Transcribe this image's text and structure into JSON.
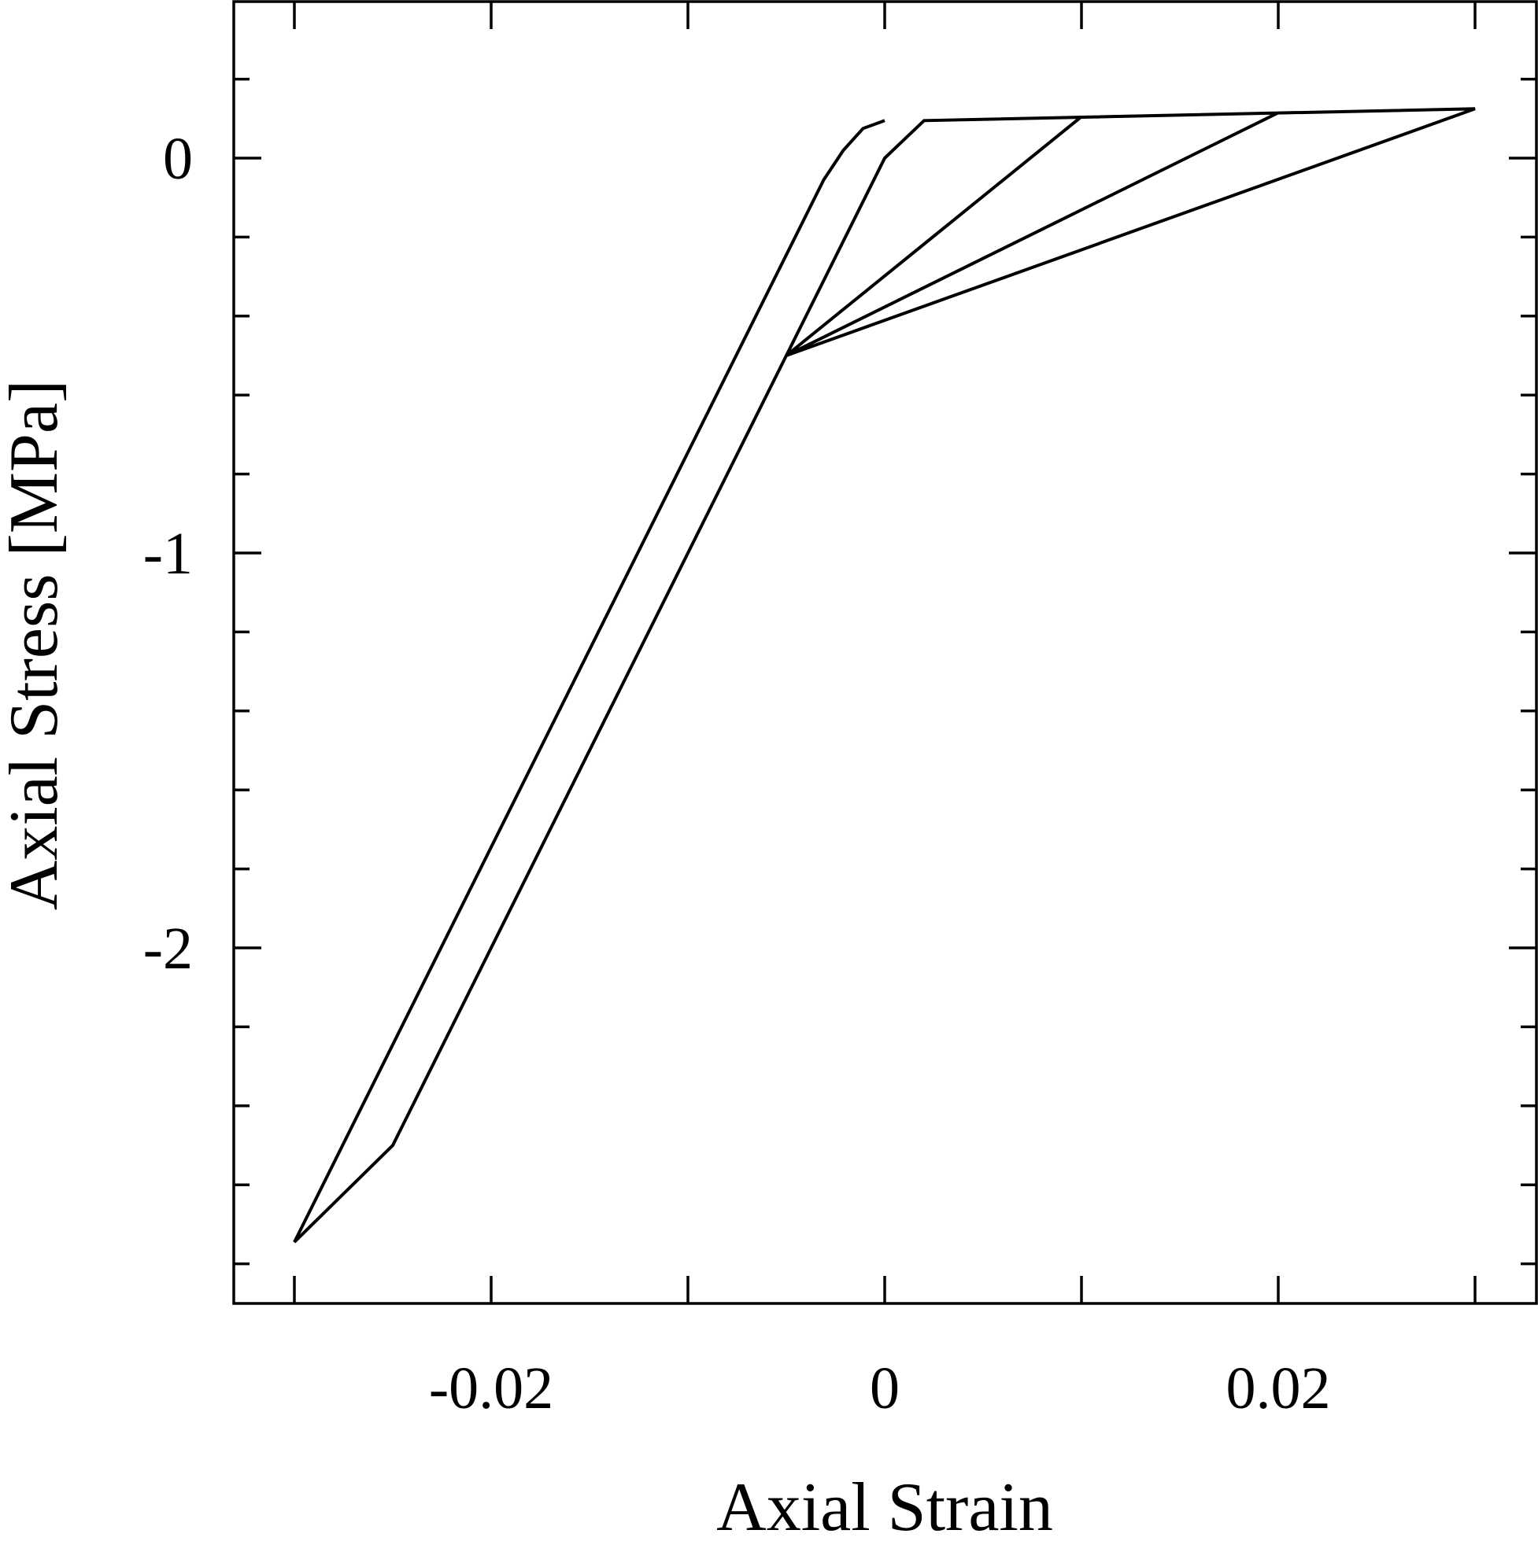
{
  "chart_data": {
    "type": "line",
    "title": "",
    "xlabel": "Axial Strain",
    "ylabel": "Axial Stress [MPa]",
    "xlim": [
      -0.033,
      0.033
    ],
    "ylim": [
      -2.9,
      0.4
    ],
    "x_ticks": [
      -0.02,
      0,
      0.02
    ],
    "x_tick_labels": [
      "-0.02",
      "0",
      "0.02"
    ],
    "x_minor_ticks": [
      -0.03,
      -0.02,
      -0.01,
      0,
      0.01,
      0.02,
      0.03
    ],
    "y_ticks": [
      0,
      -1,
      -2
    ],
    "y_tick_labels": [
      "0",
      "-1",
      "-2"
    ],
    "y_minor_ticks": [
      0.2,
      0,
      -0.2,
      -0.4,
      -0.6,
      -0.8,
      -1.0,
      -1.2,
      -1.4,
      -1.6,
      -1.8,
      -2.0,
      -2.2,
      -2.4,
      -2.6,
      -2.8
    ],
    "grid": false,
    "legend": "none",
    "series": [
      {
        "x": [
          0,
          -0.0011,
          -0.0021,
          -0.0031,
          -0.03,
          -0.025,
          -0.005,
          0,
          0.002,
          0.03,
          -0.005,
          0.01,
          -0.005,
          0.02,
          -0.005
        ],
        "y": [
          0.095,
          0.075,
          0.02,
          -0.055,
          -2.745,
          -2.5,
          -0.5,
          0,
          0.095,
          0.125,
          -0.5,
          0.105,
          -0.5,
          0.115,
          -0.5
        ],
        "color": "#000000"
      }
    ]
  }
}
